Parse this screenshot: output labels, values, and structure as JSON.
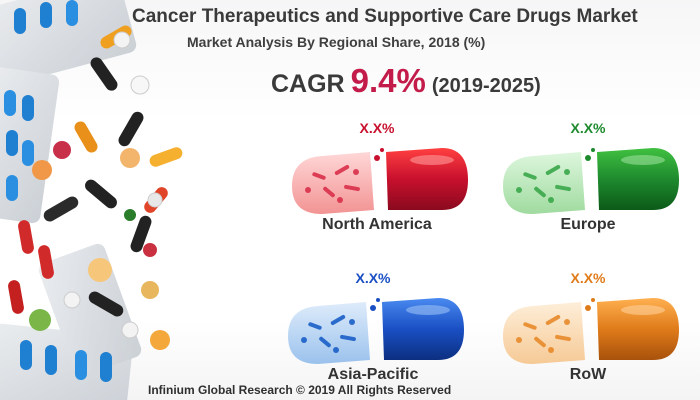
{
  "title": "Cancer Therapeutics and Supportive Care Drugs Market",
  "subtitle": "Market Analysis By Regional Share, 2018 (%)",
  "cagr": {
    "label": "CAGR",
    "value": "9.4%",
    "years": "(2019-2025)"
  },
  "regions": [
    {
      "name": "North America",
      "share": "X.X%",
      "color": "#c8102e"
    },
    {
      "name": "Europe",
      "share": "X.X%",
      "color": "#1e8a2e"
    },
    {
      "name": "Asia-Pacific",
      "share": "X.X%",
      "color": "#1a4fc4"
    },
    {
      "name": "RoW",
      "share": "X.X%",
      "color": "#e07b1a"
    }
  ],
  "footer": "Infinium Global Research © 2019 All Rights Reserved",
  "colors": {
    "accent": "#c31b4a",
    "text": "#3a3a3a"
  }
}
